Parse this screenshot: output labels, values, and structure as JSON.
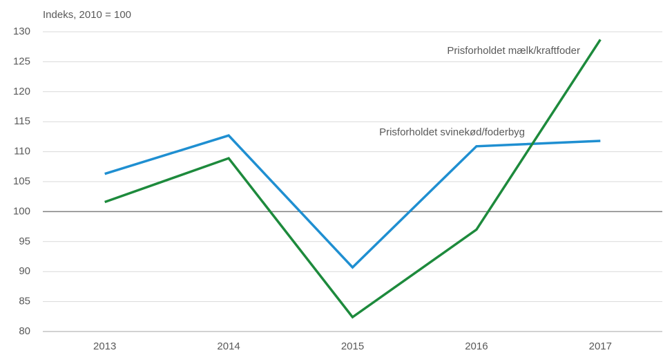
{
  "chart_data": {
    "type": "line",
    "y_axis_label": "Indeks, 2010 = 100",
    "categories": [
      "2013",
      "2014",
      "2015",
      "2016",
      "2017"
    ],
    "series": [
      {
        "name": "Prisforholdet svinekød/foderbyg",
        "color": "#1f8fd1",
        "values": [
          106.3,
          112.7,
          90.7,
          110.9,
          111.8
        ]
      },
      {
        "name": "Prisforholdet mælk/kraftfoder",
        "color": "#1d8a3c",
        "values": [
          101.6,
          108.9,
          82.4,
          97.0,
          128.7
        ]
      }
    ],
    "ylim": [
      80,
      130
    ],
    "yticks": [
      80,
      85,
      90,
      95,
      100,
      105,
      110,
      115,
      120,
      125,
      130
    ],
    "grid": true,
    "baseline": 100
  }
}
